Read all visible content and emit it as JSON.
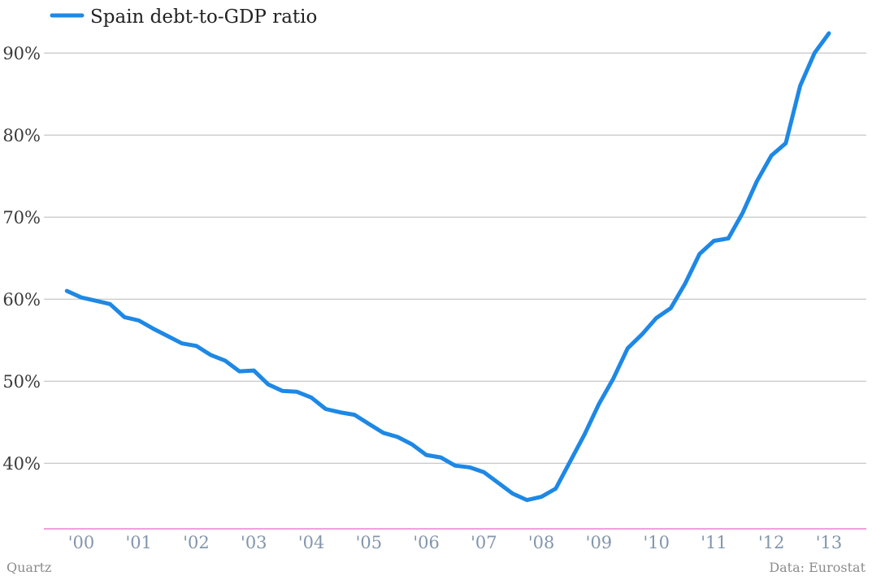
{
  "colors": {
    "series": "#1e88e5",
    "baseline": "#e566c9",
    "grid": "#b9b9b9"
  },
  "footer": {
    "credit": "Quartz",
    "source": "Data: Eurostat"
  },
  "chart_data": {
    "type": "line",
    "title": "",
    "xlabel": "",
    "ylabel": "",
    "legend_position": "top-left",
    "grid": true,
    "ylim": [
      32,
      92
    ],
    "xlim": [
      1999.6,
      2013.9
    ],
    "y_ticks": [
      {
        "value": 40,
        "label": "40%"
      },
      {
        "value": 50,
        "label": "50%"
      },
      {
        "value": 60,
        "label": "60%"
      },
      {
        "value": 70,
        "label": "70%"
      },
      {
        "value": 80,
        "label": "80%"
      },
      {
        "value": 90,
        "label": "90%"
      }
    ],
    "x_ticks": [
      {
        "value": 2000.25,
        "label": "'00"
      },
      {
        "value": 2001.25,
        "label": "'01"
      },
      {
        "value": 2002.25,
        "label": "'02"
      },
      {
        "value": 2003.25,
        "label": "'03"
      },
      {
        "value": 2004.25,
        "label": "'04"
      },
      {
        "value": 2005.25,
        "label": "'05"
      },
      {
        "value": 2006.25,
        "label": "'06"
      },
      {
        "value": 2007.25,
        "label": "'07"
      },
      {
        "value": 2008.25,
        "label": "'08"
      },
      {
        "value": 2009.25,
        "label": "'09"
      },
      {
        "value": 2010.25,
        "label": "'10"
      },
      {
        "value": 2011.25,
        "label": "'11"
      },
      {
        "value": 2012.25,
        "label": "'12"
      },
      {
        "value": 2013.25,
        "label": "'13"
      }
    ],
    "series": [
      {
        "name": "Spain debt-to-GDP ratio",
        "x": [
          2000.0,
          2000.25,
          2000.5,
          2000.75,
          2001.0,
          2001.25,
          2001.5,
          2001.75,
          2002.0,
          2002.25,
          2002.5,
          2002.75,
          2003.0,
          2003.25,
          2003.5,
          2003.75,
          2004.0,
          2004.25,
          2004.5,
          2004.75,
          2005.0,
          2005.25,
          2005.5,
          2005.75,
          2006.0,
          2006.25,
          2006.5,
          2006.75,
          2007.0,
          2007.25,
          2007.5,
          2007.75,
          2008.0,
          2008.25,
          2008.5,
          2008.75,
          2009.0,
          2009.25,
          2009.5,
          2009.75,
          2010.0,
          2010.25,
          2010.5,
          2010.75,
          2011.0,
          2011.25,
          2011.5,
          2011.75,
          2012.0,
          2012.25,
          2012.5,
          2012.75,
          2013.0
        ],
        "y": [
          61.0,
          60.2,
          59.8,
          59.4,
          57.8,
          57.4,
          56.4,
          55.5,
          54.6,
          54.3,
          53.2,
          52.5,
          51.2,
          51.3,
          49.6,
          48.8,
          48.7,
          48.0,
          46.6,
          46.2,
          45.9,
          44.8,
          43.7,
          43.2,
          42.3,
          41.0,
          40.7,
          39.7,
          39.5,
          38.9,
          37.6,
          36.3,
          35.5,
          35.9,
          36.9,
          40.2,
          43.5,
          47.2,
          50.3,
          54.0,
          55.7,
          57.7,
          58.9,
          61.9,
          65.5,
          67.1,
          67.4,
          70.5,
          74.4,
          77.5,
          79.0,
          86.0,
          90.0
        ]
      }
    ],
    "end_point": {
      "x": 2013.25,
      "y": 92.4
    }
  }
}
